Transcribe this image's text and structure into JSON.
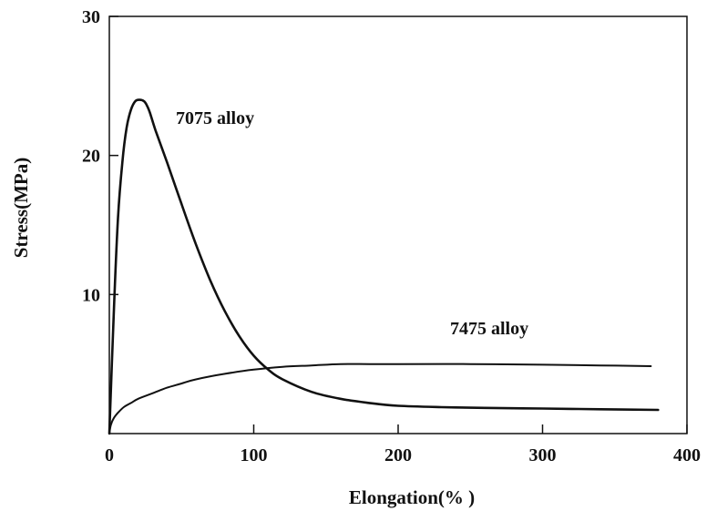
{
  "chart_data": {
    "type": "line",
    "title": "",
    "xlabel": "Elongation(% )",
    "ylabel": "Stress(MPa)",
    "xlim": [
      0,
      400
    ],
    "ylim": [
      0,
      30
    ],
    "x_ticks": [
      0,
      100,
      200,
      300,
      400
    ],
    "y_ticks": [
      10,
      20,
      30
    ],
    "grid": false,
    "legend": "none",
    "line_color": "#111111",
    "series": [
      {
        "name": "7075 alloy",
        "x": [
          0,
          3,
          6,
          9,
          12,
          15,
          18,
          21,
          24,
          26,
          28,
          32,
          40,
          50,
          60,
          70,
          80,
          90,
          100,
          110,
          120,
          140,
          160,
          180,
          200,
          230,
          260,
          300,
          340,
          380
        ],
        "y": [
          0,
          8.5,
          15.5,
          19.5,
          22.0,
          23.3,
          23.9,
          24.0,
          23.9,
          23.6,
          23.1,
          21.8,
          19.5,
          16.5,
          13.6,
          11.0,
          8.8,
          7.0,
          5.6,
          4.6,
          3.9,
          3.0,
          2.5,
          2.2,
          2.0,
          1.9,
          1.85,
          1.8,
          1.75,
          1.7
        ]
      },
      {
        "name": "7475 alloy",
        "x": [
          0,
          1,
          3,
          6,
          10,
          15,
          20,
          30,
          40,
          50,
          60,
          80,
          100,
          120,
          140,
          160,
          180,
          200,
          250,
          300,
          340,
          375
        ],
        "y": [
          0,
          0.6,
          1.1,
          1.5,
          1.9,
          2.2,
          2.5,
          2.9,
          3.3,
          3.6,
          3.9,
          4.3,
          4.6,
          4.8,
          4.9,
          5.0,
          5.0,
          5.0,
          5.0,
          4.95,
          4.9,
          4.85
        ]
      }
    ]
  }
}
